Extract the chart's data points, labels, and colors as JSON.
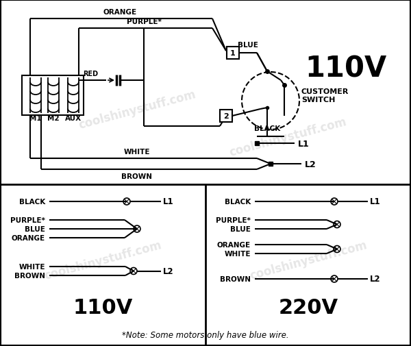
{
  "white": "#ffffff",
  "black": "#000000",
  "note": "*Note: Some motors only have blue wire.",
  "watermark_text": "coolshinystuff.com",
  "title_110v_top": "110V",
  "title_110v_bot": "110V",
  "title_220v_bot": "220V",
  "fig_w": 6.0,
  "fig_h": 5.06,
  "dpi": 100
}
